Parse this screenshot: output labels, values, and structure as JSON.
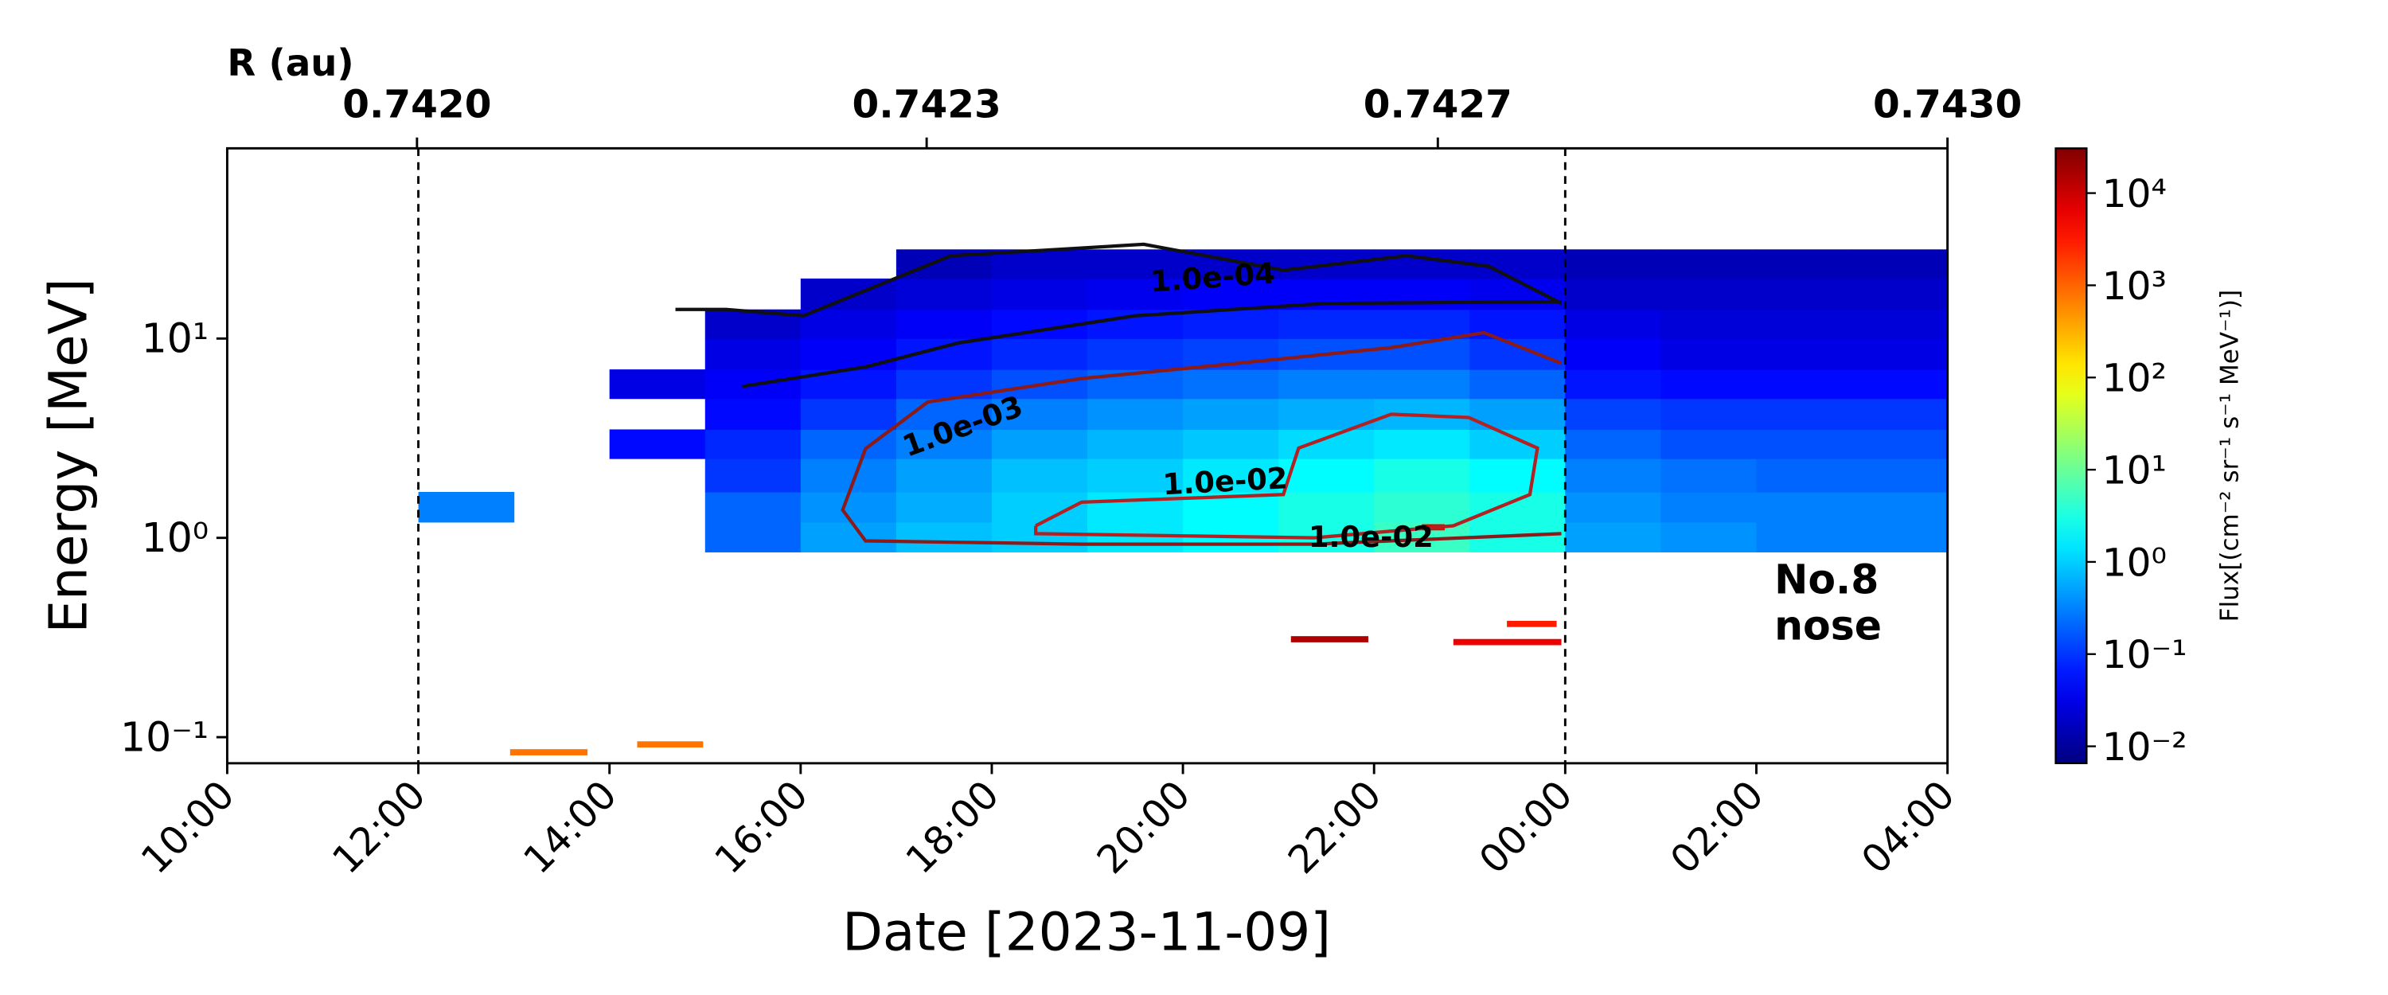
{
  "chart_data": {
    "type": "heatmap",
    "xlabel": "Date [2023-11-09]",
    "ylabel": "Energy [MeV]",
    "x2label": "R (au)",
    "xlim": [
      10,
      28
    ],
    "xticks": [
      {
        "value": 10,
        "label": "10:00"
      },
      {
        "value": 12,
        "label": "12:00"
      },
      {
        "value": 14,
        "label": "14:00"
      },
      {
        "value": 16,
        "label": "16:00"
      },
      {
        "value": 18,
        "label": "18:00"
      },
      {
        "value": 20,
        "label": "20:00"
      },
      {
        "value": 22,
        "label": "22:00"
      },
      {
        "value": 24,
        "label": "00:00"
      },
      {
        "value": 26,
        "label": "02:00"
      },
      {
        "value": 28,
        "label": "04:00"
      }
    ],
    "x2lim": [
      0.741876,
      0.743
    ],
    "x2ticks": [
      {
        "value": 0.742,
        "label": "0.7420"
      },
      {
        "value": 0.742333,
        "label": "0.7423"
      },
      {
        "value": 0.742667,
        "label": "0.7427"
      },
      {
        "value": 0.743,
        "label": "0.7430"
      }
    ],
    "ylim": [
      0.074,
      90
    ],
    "yscale": "log",
    "yticks": [
      {
        "value": 0.1,
        "label": "10⁻¹"
      },
      {
        "value": 1,
        "label": "10⁰"
      },
      {
        "value": 10,
        "label": "10¹"
      }
    ],
    "x_edges": [
      10,
      11,
      12,
      13,
      14,
      15,
      16,
      17,
      18,
      19,
      20,
      21,
      22,
      23,
      24,
      25,
      26,
      27,
      28
    ],
    "y_edges": [
      0.85,
      1.2,
      1.7,
      2.5,
      3.5,
      5,
      7,
      10,
      14,
      20,
      28
    ],
    "z": [
      [
        null,
        null,
        null,
        null,
        null,
        0.2,
        0.5,
        0.8,
        1,
        1.5,
        2,
        3,
        5,
        3,
        0.5,
        0.4,
        0.3,
        0.3
      ],
      [
        null,
        null,
        0.3,
        null,
        null,
        0.2,
        0.4,
        0.6,
        1,
        1.5,
        2,
        3,
        4,
        3,
        0.4,
        0.3,
        0.3,
        0.3
      ],
      [
        null,
        null,
        null,
        null,
        null,
        0.1,
        0.3,
        0.5,
        0.8,
        1,
        1.5,
        2,
        3,
        2,
        0.3,
        0.25,
        0.2,
        0.2
      ],
      [
        null,
        null,
        null,
        null,
        0.05,
        0.08,
        0.2,
        0.3,
        0.5,
        0.7,
        0.9,
        1.2,
        1.5,
        1,
        0.2,
        0.15,
        0.15,
        0.15
      ],
      [
        null,
        null,
        null,
        null,
        null,
        0.05,
        0.1,
        0.2,
        0.3,
        0.4,
        0.5,
        0.6,
        0.7,
        0.5,
        0.12,
        0.1,
        0.1,
        0.1
      ],
      [
        null,
        null,
        null,
        null,
        0.03,
        0.04,
        0.06,
        0.1,
        0.15,
        0.2,
        0.25,
        0.3,
        0.3,
        0.2,
        0.06,
        0.05,
        0.05,
        0.05
      ],
      [
        null,
        null,
        null,
        null,
        null,
        0.03,
        0.04,
        0.06,
        0.08,
        0.1,
        0.12,
        0.15,
        0.15,
        0.1,
        0.04,
        0.03,
        0.03,
        0.03
      ],
      [
        null,
        null,
        null,
        null,
        null,
        0.02,
        0.03,
        0.04,
        0.05,
        0.06,
        0.07,
        0.08,
        0.08,
        0.06,
        0.03,
        0.025,
        0.025,
        0.025
      ],
      [
        null,
        null,
        null,
        null,
        null,
        null,
        0.02,
        0.025,
        0.03,
        0.035,
        0.04,
        0.04,
        0.04,
        0.035,
        0.02,
        0.02,
        0.02,
        0.02
      ],
      [
        null,
        null,
        null,
        null,
        null,
        null,
        null,
        0.015,
        0.02,
        0.02,
        0.02,
        0.02,
        0.02,
        0.02,
        0.015,
        0.015,
        0.015,
        0.015
      ]
    ],
    "colormap": "jet",
    "clim": [
      0.00655,
      30600
    ],
    "cscale": "log",
    "cticks": [
      {
        "value": 0.01,
        "label": "10⁻²"
      },
      {
        "value": 0.1,
        "label": "10⁻¹"
      },
      {
        "value": 1,
        "label": "10⁰"
      },
      {
        "value": 10,
        "label": "10¹"
      },
      {
        "value": 100,
        "label": "10²"
      },
      {
        "value": 1000,
        "label": "10³"
      },
      {
        "value": 10000,
        "label": "10⁴"
      }
    ],
    "clabel": "Flux[(cm⁻² sr⁻¹ s⁻¹ MeV⁻¹)]",
    "contours": [
      {
        "level": 0.0001,
        "color": "#111111",
        "labels": [
          "1.0e-04"
        ],
        "x": [
          14.69,
          15.22,
          16.03,
          17.57,
          19.59,
          21.05,
          22.34,
          23.2,
          23.96,
          null,
          15.39,
          16.68,
          17.65,
          19.5,
          21.5,
          23.96
        ],
        "y": [
          14,
          14,
          13,
          26,
          29.7,
          22,
          26,
          23,
          15,
          null,
          5.75,
          7.2,
          9.5,
          13,
          15,
          15.3
        ]
      },
      {
        "level": 0.001,
        "color": "#8b1a1a",
        "labels": [
          "1.0e-03"
        ],
        "x": [
          23.96,
          23.15,
          22.18,
          20.56,
          18.94,
          17.33,
          16.68,
          16.44,
          16.68,
          18.94,
          21.37,
          23.96
        ],
        "y": [
          7.5,
          10.7,
          9.0,
          7.5,
          6.3,
          4.8,
          2.8,
          1.38,
          0.965,
          0.93,
          0.93,
          1.05
        ]
      },
      {
        "level": 0.01,
        "color": "#b22222",
        "labels": [
          "1.0e-02",
          "1.0e-02"
        ],
        "x": [
          18.46,
          18.94,
          21.05,
          21.21,
          22.18,
          22.99,
          23.71,
          23.63,
          22.83,
          21.37,
          18.46,
          18.46
        ],
        "y": [
          1.15,
          1.51,
          1.65,
          2.82,
          4.17,
          4.02,
          2.82,
          1.65,
          1.15,
          1.0,
          1.05,
          1.15
        ]
      }
    ],
    "patches": [
      {
        "x": [
          12.96,
          13.77
        ],
        "energy": 0.084,
        "flux": 800
      },
      {
        "x": [
          14.29,
          14.98
        ],
        "energy": 0.092,
        "flux": 800
      },
      {
        "x": [
          21.13,
          21.94
        ],
        "energy": 0.31,
        "flux": 15000
      },
      {
        "x": [
          22.83,
          23.96
        ],
        "energy": 0.3,
        "flux": 6000
      },
      {
        "x": [
          23.39,
          23.91
        ],
        "energy": 0.37,
        "flux": 3000
      },
      {
        "x": [
          22.5,
          22.74
        ],
        "energy": 1.13,
        "flux": 6000
      }
    ],
    "vlines": [
      12,
      24
    ],
    "annotation": [
      "No.8",
      "nose"
    ]
  }
}
